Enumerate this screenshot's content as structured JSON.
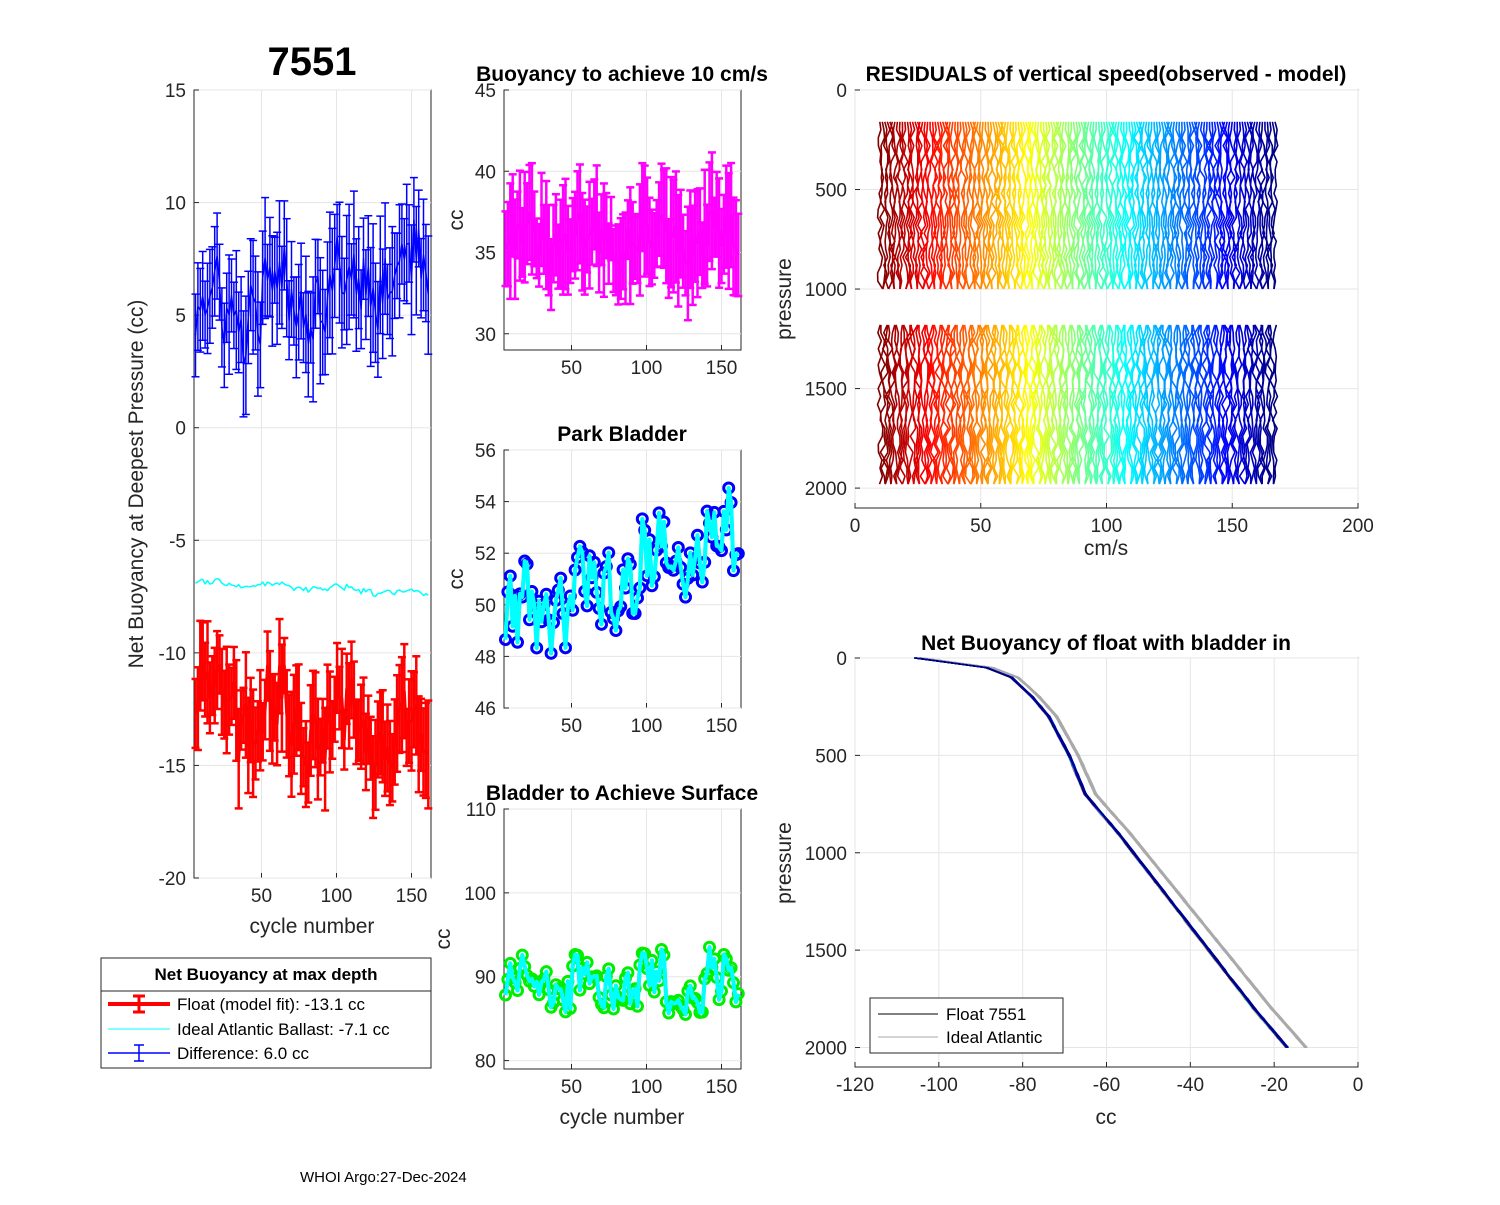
{
  "figure_title": "7551",
  "footer": "WHOI Argo:27-Dec-2024",
  "chart_data": [
    {
      "id": "net-buoyancy",
      "type": "line",
      "title": "7551",
      "xlabel": "cycle number",
      "ylabel": "Net Buoyancy at Deepest Pressure (cc)",
      "xlim": [
        5,
        163
      ],
      "ylim": [
        -20,
        15
      ],
      "xticks": [
        50,
        100,
        150
      ],
      "yticks": [
        15,
        10,
        5,
        0,
        -5,
        -10,
        -15,
        -20
      ],
      "series": [
        {
          "name": "Difference",
          "color": "#0000ff",
          "errorbars": true,
          "mean": 6.0,
          "trend": 2.5,
          "noise": 1.6,
          "err": 2.4
        },
        {
          "name": "Ideal Atlantic Ballast",
          "color": "#00ffff",
          "errorbars": false,
          "mean": -7.1,
          "trend": -0.5,
          "noise": 0.15,
          "err": 0
        },
        {
          "name": "Float (model fit)",
          "color": "#ff0000",
          "errorbars": true,
          "mean": -13.1,
          "trend": -2.0,
          "noise": 1.6,
          "err": 2.0,
          "lineWidth": 3
        }
      ],
      "legend": {
        "title": "Net Buoyancy at max depth",
        "entries": [
          "Float (model fit): -13.1 cc",
          "Ideal Atlantic Ballast:  -7.1 cc",
          "Difference:   6.0 cc"
        ]
      }
    },
    {
      "id": "buoyancy-10cms",
      "type": "line",
      "title": "Buoyancy to achieve 10 cm/s",
      "xlabel": "",
      "ylabel": "cc",
      "xlim": [
        5,
        163
      ],
      "ylim": [
        29,
        45
      ],
      "xticks": [
        50,
        100,
        150
      ],
      "yticks": [
        45,
        40,
        35,
        30
      ],
      "series": [
        {
          "name": "buoyancy",
          "color": "#ff00ff",
          "errorbars": true,
          "mean": 35.8,
          "trend": 0,
          "noise": 1.4,
          "err": 3.0,
          "lineWidth": 3
        }
      ]
    },
    {
      "id": "park-bladder",
      "type": "line",
      "title": "Park Bladder",
      "xlabel": "",
      "ylabel": "cc",
      "xlim": [
        5,
        163
      ],
      "ylim": [
        46,
        56
      ],
      "xticks": [
        50,
        100,
        150
      ],
      "yticks": [
        56,
        54,
        52,
        50,
        48,
        46
      ],
      "series": [
        {
          "name": "park bladder",
          "color": "#00ffff",
          "marker": "#0000ff",
          "mean": 51.0,
          "trend": 3.5,
          "noise": 1.5,
          "lineWidth": 4
        }
      ]
    },
    {
      "id": "bladder-surface",
      "type": "line",
      "title": "Bladder to Achieve Surface",
      "xlabel": "cycle number",
      "ylabel": "cc",
      "xlim": [
        5,
        163
      ],
      "ylim": [
        79,
        110
      ],
      "xticks": [
        50,
        100,
        150
      ],
      "yticks": [
        110,
        100,
        90,
        80
      ],
      "series": [
        {
          "name": "surface bladder",
          "color": "#00ffff",
          "marker": "#00ee00",
          "mean": 89.0,
          "trend": 0,
          "noise": 3.0,
          "lineWidth": 4
        }
      ]
    },
    {
      "id": "residuals",
      "type": "line",
      "title": "RESIDUALS of vertical speed(observed - model)",
      "xlabel": "cm/s",
      "ylabel": "pressure",
      "xlim": [
        0,
        200
      ],
      "ylim": [
        0,
        2100
      ],
      "reversed_y": true,
      "xticks": [
        0,
        50,
        100,
        150,
        200
      ],
      "yticks": [
        0,
        500,
        1000,
        1500,
        2000
      ],
      "profiles": {
        "count": 158,
        "x_start": 10,
        "x_step": 1.0,
        "segments": [
          [
            160,
            1000
          ],
          [
            1180,
            2000
          ]
        ],
        "colormap": "jet"
      }
    },
    {
      "id": "net-buoyancy-bladder-in",
      "type": "line",
      "title": "Net Buoyancy of float with bladder in",
      "xlabel": "cc",
      "ylabel": "pressure",
      "xlim": [
        -120,
        0
      ],
      "ylim": [
        0,
        2100
      ],
      "reversed_y": true,
      "xticks": [
        -120,
        -100,
        -80,
        -60,
        -40,
        -20,
        0
      ],
      "yticks": [
        0,
        500,
        1000,
        1500,
        2000
      ],
      "profile_shape": {
        "pressure": [
          0,
          50,
          100,
          200,
          300,
          500,
          700,
          900,
          1200,
          1500,
          1800,
          2000
        ],
        "value": [
          -105,
          -88,
          -82,
          -77,
          -73,
          -68,
          -64,
          -56,
          -45,
          -34,
          -23,
          -15
        ]
      },
      "legend": {
        "entries": [
          "Float 7551",
          "Ideal Atlantic"
        ]
      }
    }
  ]
}
